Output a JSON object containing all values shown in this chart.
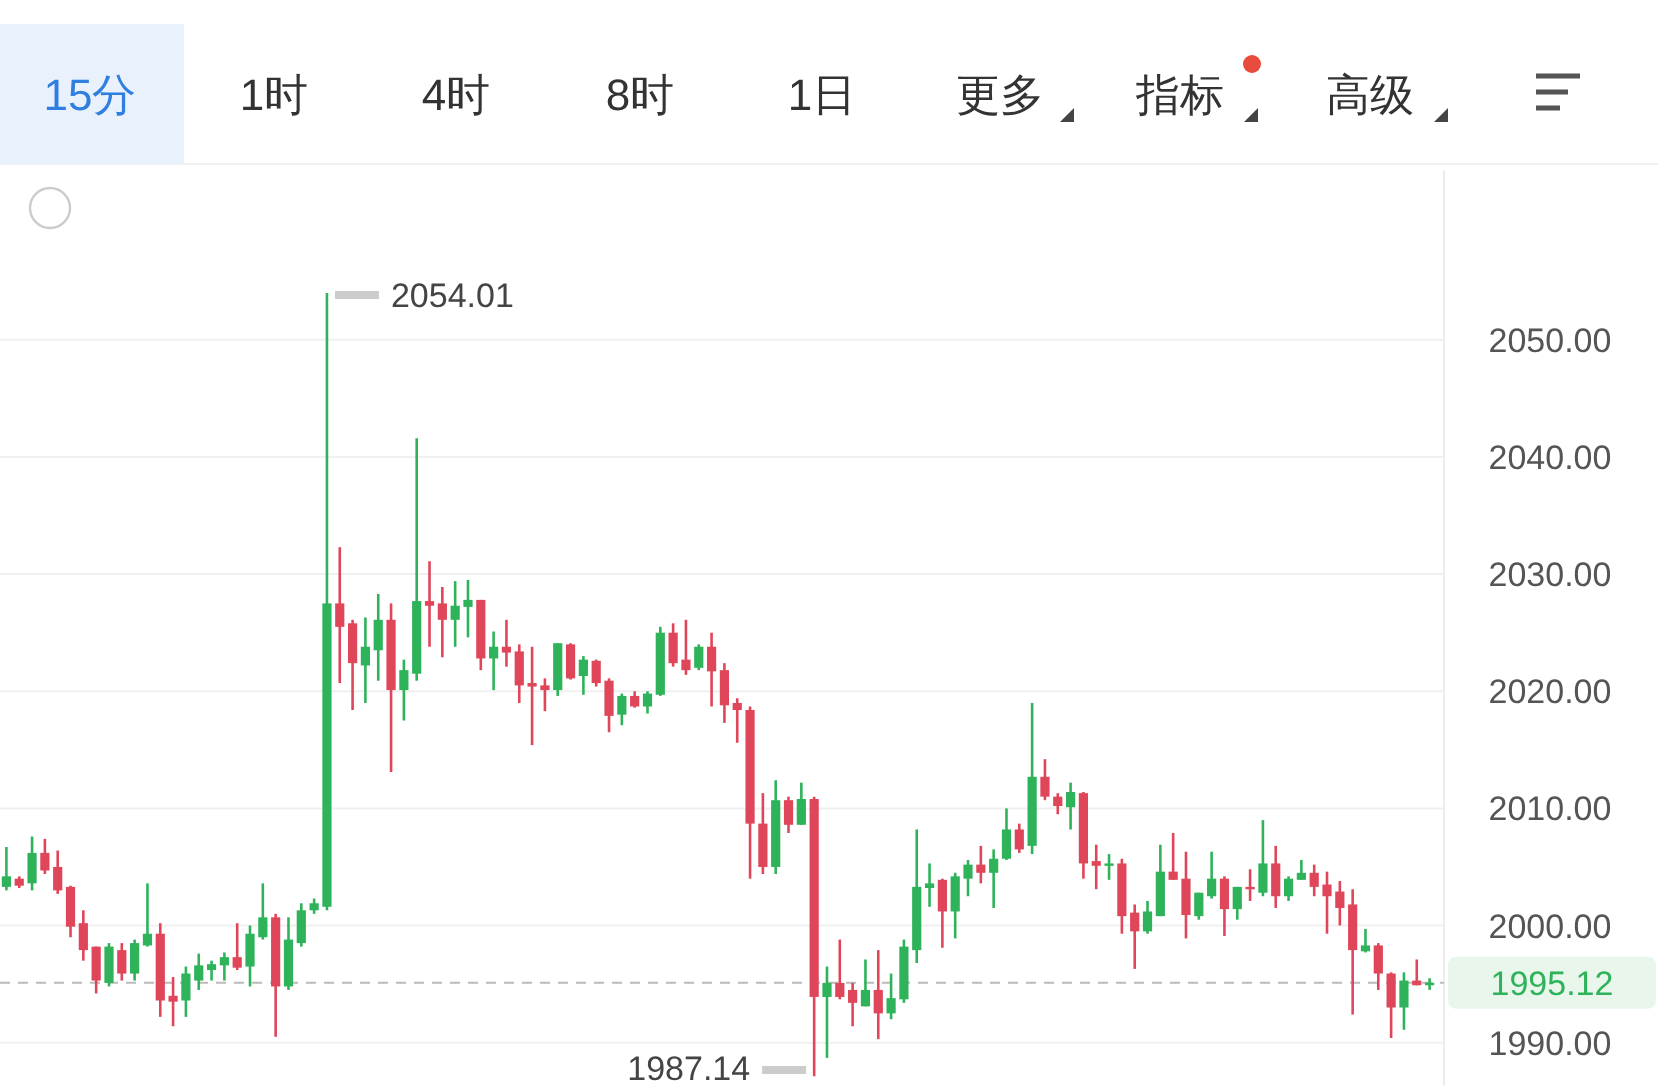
{
  "chart_data": {
    "type": "candlestick",
    "categories": [
      null,
      null,
      null,
      null,
      null,
      null,
      null,
      null,
      null,
      null,
      null,
      null,
      null,
      null,
      null,
      null,
      null,
      null,
      null,
      null,
      null,
      null,
      null,
      null,
      null,
      null,
      null,
      null,
      null,
      null,
      null,
      null,
      null,
      null,
      null,
      null,
      null,
      null,
      null,
      null,
      null,
      null,
      null,
      null,
      null,
      null,
      null,
      null,
      null,
      null,
      null,
      null,
      null,
      null,
      null,
      null,
      null,
      null,
      null,
      null,
      null,
      null,
      null,
      null,
      null,
      null,
      null,
      null,
      null,
      null,
      null,
      null,
      null,
      null,
      null,
      null,
      null,
      null,
      null,
      null,
      null,
      null,
      null,
      null,
      null,
      null,
      null,
      null,
      null,
      null,
      null,
      null,
      null,
      null,
      null,
      null,
      null,
      null,
      null,
      null,
      null,
      null,
      null,
      null,
      null,
      null,
      null,
      null,
      null,
      null,
      null,
      null
    ],
    "ohlc": [
      [
        2003.3,
        2006.7,
        2003.0,
        2004.2
      ],
      [
        2004.0,
        2004.2,
        2003.2,
        2003.4
      ],
      [
        2003.6,
        2007.6,
        2003.0,
        2006.2
      ],
      [
        2006.2,
        2007.4,
        2004.4,
        2004.7
      ],
      [
        2005.0,
        2006.4,
        2002.7,
        2003.0
      ],
      [
        2003.3,
        2003.4,
        1999.0,
        1999.9
      ],
      [
        2000.2,
        2001.3,
        1997.0,
        1997.9
      ],
      [
        1998.2,
        1998.2,
        1994.2,
        1995.3
      ],
      [
        1995.1,
        1998.5,
        1994.8,
        1998.2
      ],
      [
        1997.9,
        1998.5,
        1995.3,
        1995.9
      ],
      [
        1995.9,
        1998.8,
        1995.3,
        1998.5
      ],
      [
        1998.3,
        2003.6,
        1998.2,
        1999.3
      ],
      [
        1999.3,
        2000.2,
        1992.2,
        1993.6
      ],
      [
        1994.0,
        1995.6,
        1991.4,
        1993.5
      ],
      [
        1993.6,
        1996.5,
        1992.2,
        1995.9
      ],
      [
        1995.3,
        1997.6,
        1994.5,
        1996.6
      ],
      [
        1996.2,
        1997.0,
        1995.3,
        1996.7
      ],
      [
        1996.6,
        1997.7,
        1995.3,
        1997.3
      ],
      [
        1997.3,
        2000.2,
        1996.2,
        1996.4
      ],
      [
        1996.5,
        2000.0,
        1994.8,
        1999.3
      ],
      [
        1999.0,
        2003.6,
        1998.8,
        2000.7
      ],
      [
        2000.7,
        2001.0,
        1990.5,
        1994.8
      ],
      [
        1994.8,
        2000.7,
        1994.5,
        1998.8
      ],
      [
        1998.5,
        2001.9,
        1998.2,
        2001.3
      ],
      [
        2001.3,
        2002.3,
        2001.0,
        2001.9
      ],
      [
        2001.6,
        2054.01,
        2001.3,
        2027.5
      ],
      [
        2027.5,
        2032.3,
        2020.7,
        2025.5
      ],
      [
        2025.8,
        2026.1,
        2018.4,
        2022.4
      ],
      [
        2022.2,
        2026.3,
        2019.0,
        2023.8
      ],
      [
        2023.5,
        2028.3,
        2020.9,
        2026.1
      ],
      [
        2026.1,
        2027.5,
        2013.1,
        2020.1
      ],
      [
        2020.1,
        2022.7,
        2017.5,
        2021.8
      ],
      [
        2021.5,
        2041.6,
        2020.9,
        2027.7
      ],
      [
        2027.7,
        2031.1,
        2023.8,
        2027.3
      ],
      [
        2027.5,
        2028.9,
        2022.9,
        2026.1
      ],
      [
        2026.1,
        2029.4,
        2023.8,
        2027.3
      ],
      [
        2027.2,
        2029.5,
        2024.6,
        2027.8
      ],
      [
        2027.8,
        2027.8,
        2021.8,
        2022.8
      ],
      [
        2022.8,
        2025.1,
        2020.1,
        2023.8
      ],
      [
        2023.8,
        2026.1,
        2022.1,
        2023.3
      ],
      [
        2023.4,
        2024.0,
        2019.0,
        2020.5
      ],
      [
        2020.7,
        2023.8,
        2015.4,
        2020.4
      ],
      [
        2020.5,
        2021.1,
        2018.3,
        2020.1
      ],
      [
        2020.1,
        2024.1,
        2019.6,
        2024.1
      ],
      [
        2024.0,
        2024.1,
        2021.0,
        2021.1
      ],
      [
        2021.3,
        2023.0,
        2019.7,
        2022.7
      ],
      [
        2022.6,
        2022.7,
        2020.4,
        2020.7
      ],
      [
        2020.9,
        2021.1,
        2016.5,
        2017.9
      ],
      [
        2018.0,
        2019.8,
        2017.1,
        2019.6
      ],
      [
        2019.6,
        2020.0,
        2018.6,
        2018.7
      ],
      [
        2018.7,
        2020.0,
        2018.1,
        2019.8
      ],
      [
        2019.7,
        2025.5,
        2019.6,
        2025.0
      ],
      [
        2025.0,
        2025.8,
        2022.1,
        2022.4
      ],
      [
        2022.7,
        2026.1,
        2021.4,
        2021.8
      ],
      [
        2022.0,
        2024.0,
        2021.8,
        2023.8
      ],
      [
        2023.8,
        2025.0,
        2018.7,
        2021.7
      ],
      [
        2021.8,
        2022.4,
        2017.3,
        2018.8
      ],
      [
        2019.0,
        2019.4,
        2015.6,
        2018.4
      ],
      [
        2018.4,
        2018.7,
        2004.0,
        2008.7
      ],
      [
        2008.7,
        2011.3,
        2004.4,
        2005.0
      ],
      [
        2005.0,
        2012.4,
        2004.4,
        2010.7
      ],
      [
        2010.7,
        2011.0,
        2007.9,
        2008.6
      ],
      [
        2008.6,
        2012.2,
        2008.6,
        2010.8
      ],
      [
        2010.8,
        2011.0,
        1987.14,
        1993.9
      ],
      [
        1993.9,
        1996.5,
        1988.7,
        1995.1
      ],
      [
        1995.1,
        1998.8,
        1993.7,
        1993.9
      ],
      [
        1994.5,
        1995.1,
        1991.4,
        1993.4
      ],
      [
        1993.1,
        1997.1,
        1993.1,
        1994.5
      ],
      [
        1994.5,
        1997.9,
        1990.3,
        1992.5
      ],
      [
        1992.5,
        1995.9,
        1992.0,
        1993.8
      ],
      [
        1993.7,
        1998.8,
        1993.4,
        1998.2
      ],
      [
        1997.9,
        2008.2,
        1996.8,
        2003.3
      ],
      [
        2003.2,
        2005.3,
        2001.6,
        2003.6
      ],
      [
        2003.9,
        2004.0,
        1998.1,
        2001.2
      ],
      [
        2001.2,
        2004.5,
        1998.9,
        2004.2
      ],
      [
        2004.0,
        2005.6,
        2002.5,
        2005.2
      ],
      [
        2005.2,
        2006.8,
        2003.6,
        2004.5
      ],
      [
        2004.5,
        2006.5,
        2001.5,
        2005.7
      ],
      [
        2005.7,
        2010.0,
        2005.6,
        2008.2
      ],
      [
        2008.2,
        2008.7,
        2006.2,
        2006.5
      ],
      [
        2006.8,
        2019.0,
        2006.1,
        2012.7
      ],
      [
        2012.7,
        2014.2,
        2010.7,
        2011.0
      ],
      [
        2011.0,
        2011.3,
        2009.5,
        2010.2
      ],
      [
        2010.1,
        2012.2,
        2008.2,
        2011.4
      ],
      [
        2011.3,
        2011.4,
        2004.0,
        2005.3
      ],
      [
        2005.5,
        2006.9,
        2003.1,
        2005.1
      ],
      [
        2005.1,
        2006.1,
        2003.9,
        2005.3
      ],
      [
        2005.3,
        2005.7,
        1999.3,
        2000.8
      ],
      [
        2001.1,
        2001.8,
        1996.3,
        1999.5
      ],
      [
        1999.5,
        2002.1,
        1999.3,
        2001.2
      ],
      [
        2000.8,
        2006.9,
        2000.8,
        2004.6
      ],
      [
        2004.6,
        2007.9,
        2003.9,
        2003.9
      ],
      [
        2004.0,
        2006.3,
        1998.9,
        2000.9
      ],
      [
        2000.8,
        2002.8,
        2000.5,
        2002.8
      ],
      [
        2002.5,
        2006.3,
        2002.3,
        2004.0
      ],
      [
        2004.0,
        2004.2,
        1999.1,
        2001.4
      ],
      [
        2001.4,
        2003.3,
        2000.5,
        2003.3
      ],
      [
        2003.3,
        2004.8,
        2002.1,
        2003.1
      ],
      [
        2002.8,
        2009.0,
        2002.5,
        2005.3
      ],
      [
        2005.3,
        2006.8,
        2001.5,
        2002.5
      ],
      [
        2002.5,
        2004.2,
        2002.1,
        2004.0
      ],
      [
        2003.9,
        2005.6,
        2003.9,
        2004.5
      ],
      [
        2004.5,
        2005.2,
        2002.5,
        2003.3
      ],
      [
        2003.5,
        2004.6,
        1999.3,
        2002.5
      ],
      [
        2002.9,
        2003.8,
        2000.0,
        2001.5
      ],
      [
        2001.8,
        2003.1,
        1992.4,
        1997.9
      ],
      [
        1997.8,
        1999.7,
        1997.7,
        1998.3
      ],
      [
        1998.3,
        1998.5,
        1994.5,
        1995.9
      ],
      [
        1995.9,
        1996.0,
        1990.4,
        1993.0
      ],
      [
        1993.0,
        1996.0,
        1991.1,
        1995.3
      ],
      [
        1995.3,
        1997.1,
        1994.9,
        1994.9
      ],
      [
        1994.9,
        1995.5,
        1994.5,
        1995.12
      ]
    ],
    "ylim": [
      1986.3,
      2064.5
    ],
    "yticks": [
      {
        "value": 1990,
        "label": "1990.00"
      },
      {
        "value": 2000,
        "label": "2000.00"
      },
      {
        "value": 2010,
        "label": "2010.00"
      },
      {
        "value": 2020,
        "label": "2020.00"
      },
      {
        "value": 2030,
        "label": "2030.00"
      },
      {
        "value": 2040,
        "label": "2040.00"
      },
      {
        "value": 2050,
        "label": "2050.00"
      }
    ],
    "grid": "y",
    "tick_labels": "y",
    "ref_lines": [
      {
        "axis": "y",
        "value": 1995.12,
        "label": "1995.12",
        "color": "#bbbbbb",
        "line_style": "dashed"
      }
    ],
    "annotations": [
      "2054.01",
      "1987.14",
      "15分",
      "1时",
      "4时",
      "8时",
      "1日",
      "更多",
      "指标",
      "高级"
    ]
  }
}
